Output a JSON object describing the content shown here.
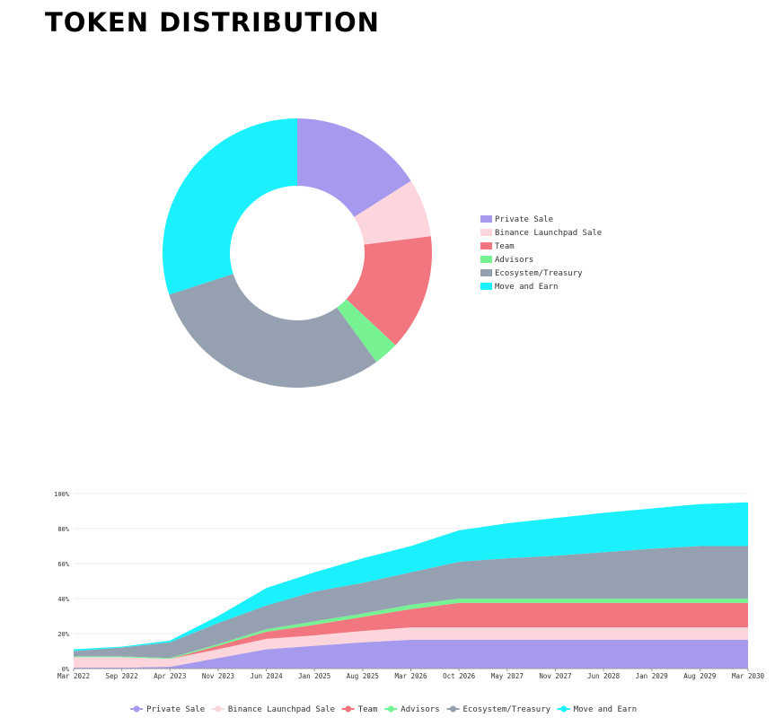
{
  "title": "TOKEN DISTRIBUTION",
  "chart_data": [
    {
      "type": "pie",
      "legend": "right",
      "categories": [
        "Private Sale",
        "Binance Launchpad Sale",
        "Team",
        "Advisors",
        "Ecosystem/Treasury",
        "Move and Earn"
      ],
      "values": [
        16,
        7,
        14,
        3,
        30,
        30
      ],
      "colors": [
        "#a59aed",
        "#fdd5dd",
        "#f1767f",
        "#77f293",
        "#95a0b0",
        "#1af1fc"
      ]
    },
    {
      "type": "stacked-area",
      "legend": "bottom",
      "grid": true,
      "categories": [
        "Mar 2022",
        "Sep 2022",
        "Apr 2023",
        "Nov 2023",
        "Jun 2024",
        "Jan 2025",
        "Aug 2025",
        "Mar 2026",
        "Oct 2026",
        "May 2027",
        "Nov 2027",
        "Jun 2028",
        "Jan 2029",
        "Aug 2029",
        "Mar 2030"
      ],
      "ylim": [
        0,
        100
      ],
      "yticks": [
        {
          "value": 0,
          "label": "0%"
        },
        {
          "value": 20,
          "label": "20%"
        },
        {
          "value": 40,
          "label": "40%"
        },
        {
          "value": 60,
          "label": "60%"
        },
        {
          "value": 80,
          "label": "80%"
        },
        {
          "value": 100,
          "label": "100%"
        }
      ],
      "series": [
        {
          "name": "Private Sale",
          "color": "#a59aed",
          "values": [
            0.5,
            0.5,
            1,
            6,
            11,
            13,
            15,
            16.5,
            16.5,
            16.5,
            16.5,
            16.5,
            16.5,
            16.5,
            16.5
          ]
        },
        {
          "name": "Binance Launchpad Sale",
          "color": "#fdd5dd",
          "values": [
            6,
            6,
            4.5,
            5,
            6,
            6,
            6.5,
            7,
            7,
            7,
            7,
            7,
            7,
            7,
            7
          ]
        },
        {
          "name": "Team",
          "color": "#f1767f",
          "values": [
            0,
            0,
            0,
            2,
            4,
            6,
            8,
            10.5,
            14,
            14,
            14,
            14,
            14,
            14,
            14
          ]
        },
        {
          "name": "Advisors",
          "color": "#77f293",
          "values": [
            0.5,
            0.5,
            0.5,
            1,
            1.5,
            2,
            2,
            2.5,
            2.5,
            2.5,
            2.5,
            2.5,
            2.5,
            2.5,
            2.5
          ]
        },
        {
          "name": "Ecosystem/Treasury",
          "color": "#95a0b0",
          "values": [
            3,
            5,
            9,
            12,
            13.5,
            17,
            17.5,
            18.5,
            21,
            23,
            24.5,
            26.5,
            28.5,
            30,
            30
          ]
        },
        {
          "name": "Move and Earn",
          "color": "#1af1fc",
          "values": [
            1,
            0.5,
            1,
            4,
            10,
            11,
            14,
            15,
            18,
            20,
            21.5,
            22.5,
            23,
            24,
            25
          ]
        }
      ]
    }
  ]
}
